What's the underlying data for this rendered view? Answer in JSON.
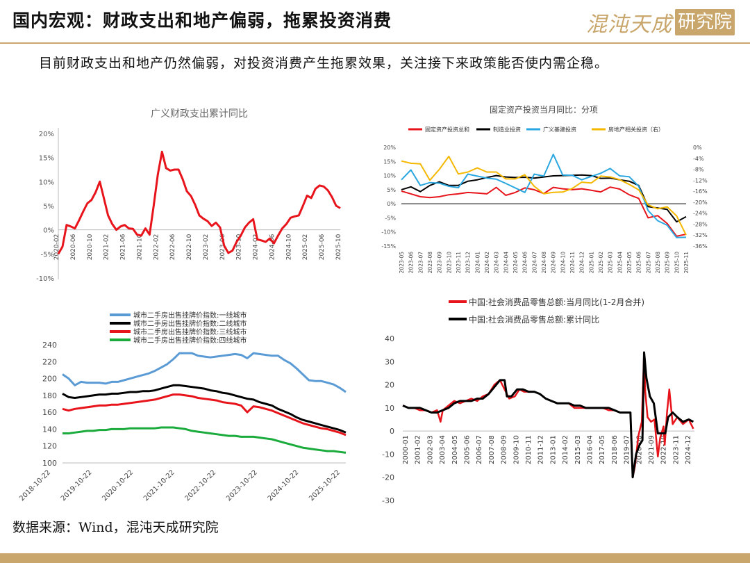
{
  "header": {
    "title": "国内宏观：财政支出和地产偏弱，拖累投资消费",
    "logo_text": "混沌天成",
    "logo_box": "研究院"
  },
  "subtitle": "目前财政支出和地产仍然偏弱，对投资消费产生拖累效果，关注接下来政策能否使内需企稳。",
  "source": "数据来源：Wind，混沌天成研究院",
  "colors": {
    "accent": "#c9a66b",
    "red": "#e8141b",
    "black": "#000000",
    "blue": "#2aa7e0",
    "gold": "#f5b800",
    "lightblue": "#5b9bd5",
    "green": "#1aab3c"
  },
  "chart_data": [
    {
      "type": "line",
      "title": "广义财政支出累计同比",
      "ylim": [
        -10,
        20
      ],
      "yticks": [
        "20%",
        "15%",
        "10%",
        "5%",
        "0%",
        "-5%",
        "-10%"
      ],
      "xticks": [
        "2020-02",
        "2020-06",
        "2020-10",
        "2021-02",
        "2021-06",
        "2021-10",
        "2022-02",
        "2022-06",
        "2022-10",
        "2023-02",
        "2023-06",
        "2023-10",
        "2024-02",
        "2024-06",
        "2024-10",
        "2025-02",
        "2025-06",
        "2025-10"
      ],
      "series": [
        {
          "color": "#e8141b",
          "values": [
            -5,
            -3.5,
            1,
            0.7,
            0.3,
            2,
            3.8,
            5.5,
            6.2,
            7.8,
            10,
            6.5,
            3,
            1.2,
            0,
            0.7,
            1,
            0.3,
            0.2,
            -1,
            -1.2,
            0.3,
            -1,
            5,
            11.5,
            16.2,
            12.8,
            12.3,
            12.5,
            12.5,
            10.5,
            8,
            7,
            5.2,
            3,
            2.3,
            1.8,
            0.8,
            1.5,
            0.5,
            -3.3,
            -4.8,
            -4.3,
            -2.5,
            -1.2,
            0.5,
            1.5,
            2.2,
            -2,
            -2.2,
            -2.5,
            -1.8,
            -2.8,
            -1.2,
            0.3,
            1.2,
            2.5,
            2.8,
            3,
            5,
            7.1,
            6.6,
            8.5,
            9.2,
            9,
            8.2,
            6.8,
            5,
            4.5
          ]
        }
      ]
    },
    {
      "type": "line",
      "title": "固定资产投资当月同比：分项",
      "ylim": [
        -15,
        20
      ],
      "y2lim": [
        -36,
        0
      ],
      "yticks": [
        "20%",
        "15%",
        "10%",
        "5%",
        "0%",
        "-5%",
        "-10%",
        "-15%"
      ],
      "y2ticks": [
        "0%",
        "-4%",
        "-8%",
        "-12%",
        "-16%",
        "-20%",
        "-24%",
        "-28%",
        "-32%",
        "-36%"
      ],
      "xticks": [
        "2023-05",
        "2023-06",
        "2023-07",
        "2023-08",
        "2023-09",
        "2023-10",
        "2023-11",
        "2023-12",
        "2024-01",
        "2024-02",
        "2024-03",
        "2024-04",
        "2024-05",
        "2024-06",
        "2024-07",
        "2024-08",
        "2024-09",
        "2024-10",
        "2024-11",
        "2024-12",
        "2025-01",
        "2025-02",
        "2025-03",
        "2025-04",
        "2025-05",
        "2025-06",
        "2025-07",
        "2025-08",
        "2025-09",
        "2025-10",
        "2025-11"
      ],
      "legend": [
        "固定资产投资总和",
        "制造业投资",
        "广义基建投资",
        "房地产相关投资（右）"
      ],
      "series": [
        {
          "name": "固定资产投资总和",
          "color": "#e8141b",
          "axis": "left",
          "values": [
            4.5,
            3.5,
            2.5,
            2.2,
            2.5,
            3.2,
            3.5,
            4,
            3.8,
            3.5,
            5.8,
            3,
            4,
            5.6,
            5,
            3.6,
            5.8,
            5.3,
            5,
            5.3,
            4.8,
            4.2,
            5.9,
            5.2,
            3.2,
            1.9,
            -5,
            -4.2,
            -7,
            -11.5,
            -10.8
          ]
        },
        {
          "name": "制造业投资",
          "color": "#000000",
          "axis": "left",
          "values": [
            5,
            6,
            4.3,
            6.5,
            7.8,
            6.5,
            6.5,
            8,
            8.5,
            9.3,
            10,
            9.5,
            9.3,
            9.4,
            9.1,
            9.5,
            9.9,
            10,
            10.1,
            10.2,
            10,
            9,
            9.1,
            8.5,
            8,
            6.5,
            -1,
            -1.5,
            -2,
            -6.4,
            -4.6
          ]
        },
        {
          "name": "广义基建投资",
          "color": "#2aa7e0",
          "axis": "left",
          "values": [
            8.5,
            12,
            6.5,
            7.5,
            7.3,
            6.2,
            5.7,
            10.5,
            9.8,
            9.1,
            8.7,
            7.2,
            5.6,
            4,
            10.5,
            9.8,
            17.5,
            10.2,
            10.1,
            8.5,
            9.7,
            10.8,
            12.5,
            9.9,
            9.6,
            6.2,
            -2.4,
            -6,
            -7.6,
            -12,
            -11.9
          ]
        },
        {
          "name": "房地产相关投资（右）",
          "color": "#f5b800",
          "axis": "right",
          "values": [
            -5,
            -5.8,
            -6,
            -12,
            -8,
            -3.3,
            -9.7,
            -9,
            -7.5,
            -9,
            -9,
            -11.5,
            -11.5,
            -10,
            -14.2,
            -16.9,
            -16.4,
            -16.3,
            -15,
            -12.7,
            -13,
            -10.5,
            -10.8,
            -11.8,
            -13.5,
            -15.5,
            -21,
            -22.4,
            -21.7,
            -25,
            -32
          ]
        }
      ]
    },
    {
      "type": "line",
      "ylim": [
        100,
        240
      ],
      "yticks": [
        "240",
        "220",
        "200",
        "180",
        "160",
        "140",
        "120",
        "100"
      ],
      "xticks": [
        "2018-10-22",
        "2019-10-22",
        "2020-10-22",
        "2021-10-22",
        "2022-10-22",
        "2023-10-22",
        "2024-10-22",
        "2025-10-22"
      ],
      "legend": [
        "城市二手房出售挂牌价指数:一线城市",
        "城市二手房出售挂牌价指数:二线城市",
        "城市二手房出售挂牌价指数:三线城市",
        "城市二手房出售挂牌价指数:四线城市"
      ],
      "series": [
        {
          "name": "城市二手房出售挂牌价指数:一线城市",
          "color": "#5b9bd5",
          "values": [
            205,
            200,
            192,
            196,
            195,
            195,
            195,
            194,
            196,
            196,
            198,
            200,
            202,
            204,
            206,
            209,
            213,
            217,
            223,
            230,
            230,
            230,
            227,
            226,
            225,
            226,
            227,
            228,
            229,
            228,
            224,
            230,
            229,
            228,
            227,
            227,
            222,
            218,
            212,
            205,
            198,
            197,
            197,
            195,
            193,
            189,
            184
          ]
        },
        {
          "name": "城市二手房出售挂牌价指数:二线城市",
          "color": "#000000",
          "values": [
            182,
            178,
            177,
            178,
            179,
            180,
            181,
            181,
            182,
            182,
            183,
            184,
            184,
            185,
            185,
            186,
            188,
            190,
            192,
            192,
            191,
            190,
            189,
            188,
            186,
            185,
            183,
            182,
            180,
            178,
            176,
            175,
            172,
            170,
            168,
            164,
            161,
            158,
            154,
            151,
            149,
            147,
            145,
            143,
            141,
            139,
            136
          ]
        },
        {
          "name": "城市二手房出售挂牌价指数:三线城市",
          "color": "#e8141b",
          "values": [
            164,
            162,
            164,
            165,
            166,
            167,
            168,
            168,
            169,
            169,
            170,
            171,
            172,
            173,
            174,
            175,
            177,
            179,
            181,
            181,
            180,
            179,
            177,
            176,
            175,
            174,
            172,
            171,
            170,
            168,
            160,
            167,
            166,
            164,
            162,
            159,
            156,
            153,
            150,
            147,
            145,
            143,
            141,
            140,
            138,
            136,
            133
          ]
        },
        {
          "name": "城市二手房出售挂牌价指数:四线城市",
          "color": "#1aab3c",
          "values": [
            135,
            135,
            136,
            137,
            138,
            138,
            139,
            139,
            140,
            140,
            140,
            141,
            141,
            141,
            141,
            141,
            142,
            142,
            142,
            141,
            140,
            138,
            137,
            136,
            135,
            134,
            133,
            132,
            132,
            131,
            131,
            131,
            130,
            129,
            128,
            126,
            124,
            122,
            120,
            118,
            117,
            116,
            115,
            114,
            114,
            113,
            112
          ]
        }
      ]
    },
    {
      "type": "line",
      "ylim": [
        -30,
        40
      ],
      "yticks": [
        "40",
        "30",
        "20",
        "10",
        "0",
        "-10",
        "-20",
        "-30"
      ],
      "xticks": [
        "2000-01",
        "2001-02",
        "2002-03",
        "2003-04",
        "2004-05",
        "2005-06",
        "2006-07",
        "2007-08",
        "2008-09",
        "2009-10",
        "2010-11",
        "2011-12",
        "2013-01",
        "2014-02",
        "2015-03",
        "2016-04",
        "2017-05",
        "2018-06",
        "2019-07",
        "2020-08",
        "2021-09",
        "2022-10",
        "2023-11",
        "2024-12"
      ],
      "legend": [
        "中国:社会消费品零售总额:当月同比(1-2月合并)",
        "中国:社会消费品零售总额:累计同比"
      ],
      "series": [
        {
          "name": "中国:社会消费品零售总额:当月同比(1-2月合并)",
          "color": "#e8141b",
          "x": [
            2000.0,
            2000.5,
            2001.0,
            2001.5,
            2002.0,
            2002.5,
            2003.0,
            2003.3,
            2003.5,
            2004.0,
            2004.5,
            2005.0,
            2005.5,
            2006.0,
            2006.5,
            2007.0,
            2007.5,
            2008.0,
            2008.5,
            2008.9,
            2009.3,
            2009.8,
            2010.2,
            2010.6,
            2011.0,
            2011.5,
            2012.0,
            2012.5,
            2013.0,
            2013.5,
            2014.0,
            2014.5,
            2015.0,
            2015.5,
            2016.0,
            2016.5,
            2017.0,
            2017.5,
            2018.0,
            2018.5,
            2019.0,
            2019.5,
            2019.9,
            2020.1,
            2020.3,
            2020.6,
            2020.9,
            2021.1,
            2021.2,
            2021.4,
            2021.7,
            2022.0,
            2022.3,
            2022.5,
            2022.8,
            2022.9,
            2023.1,
            2023.3,
            2023.6,
            2024.0,
            2024.5,
            2025.0,
            2025.4
          ],
          "values": [
            11,
            10,
            10,
            9,
            9,
            8,
            9,
            4,
            9,
            11,
            13,
            12,
            13,
            14,
            13,
            15,
            16,
            20,
            22,
            18,
            14,
            15,
            18,
            17,
            17,
            17,
            16,
            14,
            13,
            12,
            12,
            12,
            10,
            10,
            10,
            10,
            10,
            10,
            9,
            9,
            8,
            8,
            8,
            -20,
            -15,
            -2,
            4,
            34,
            17,
            6,
            4,
            5,
            -11,
            -3,
            2,
            -6,
            8,
            18,
            3,
            6,
            3,
            5,
            1
          ]
        },
        {
          "name": "中国:社会消费品零售总额:累计同比",
          "color": "#000000",
          "x": [
            2000.0,
            2000.5,
            2001.0,
            2001.5,
            2002.0,
            2002.5,
            2003.0,
            2003.5,
            2004.0,
            2004.5,
            2005.0,
            2005.5,
            2006.0,
            2006.5,
            2007.0,
            2007.5,
            2008.0,
            2008.5,
            2008.9,
            2009.1,
            2009.5,
            2010.0,
            2010.5,
            2011.0,
            2011.5,
            2012.0,
            2012.5,
            2013.0,
            2013.5,
            2014.0,
            2014.5,
            2015.0,
            2015.5,
            2016.0,
            2016.5,
            2017.0,
            2017.5,
            2018.0,
            2018.5,
            2019.0,
            2019.5,
            2019.9,
            2020.1,
            2020.4,
            2020.7,
            2020.95,
            2021.1,
            2021.3,
            2021.6,
            2021.95,
            2022.3,
            2022.6,
            2022.95,
            2023.2,
            2023.6,
            2024.0,
            2024.5,
            2025.0,
            2025.4
          ],
          "values": [
            11,
            10,
            10,
            10,
            9,
            8,
            8,
            9,
            10,
            12,
            13,
            13,
            13,
            14,
            14,
            16,
            19,
            22,
            22,
            15,
            15,
            18,
            18,
            17,
            17,
            16,
            14,
            13,
            12,
            12,
            12,
            11,
            11,
            10,
            10,
            10,
            10,
            10,
            9,
            8,
            8,
            8,
            -20,
            -10,
            -6,
            -4,
            34,
            23,
            15,
            12,
            -1,
            -1,
            -1,
            6,
            8,
            6,
            4,
            5,
            4
          ]
        }
      ]
    }
  ]
}
